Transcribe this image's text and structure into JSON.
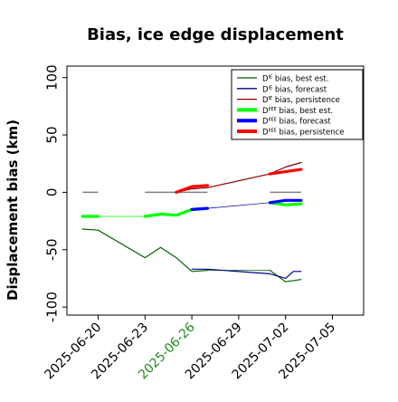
{
  "chart_data": {
    "type": "line",
    "title": "Bias, ice edge displacement",
    "xlabel": "",
    "ylabel": "Displacement bias (km)",
    "ylim": [
      -107,
      110
    ],
    "yticks": [
      100,
      50,
      0,
      -50,
      -100
    ],
    "xlim": [
      "2025-06-18",
      "2025-07-07"
    ],
    "xticks": [
      {
        "date": "2025-06-20",
        "label": "2025-06-20",
        "color": "#000000"
      },
      {
        "date": "2025-06-23",
        "label": "2025-06-23",
        "color": "#000000"
      },
      {
        "date": "2025-06-26",
        "label": "2025-06-26",
        "color": "#228b22"
      },
      {
        "date": "2025-06-29",
        "label": "2025-06-29",
        "color": "#000000"
      },
      {
        "date": "2025-07-02",
        "label": "2025-07-02",
        "color": "#000000"
      },
      {
        "date": "2025-07-05",
        "label": "2025-07-05",
        "color": "#000000"
      }
    ],
    "grid": false,
    "legend_position": "top-right",
    "zero_reference_segments": [
      {
        "x": [
          "2025-06-19",
          "2025-06-20"
        ],
        "y": 0
      },
      {
        "x": [
          "2025-06-23",
          "2025-06-27"
        ],
        "y": 0
      },
      {
        "x": [
          "2025-07-01",
          "2025-07-03"
        ],
        "y": 0
      }
    ],
    "series": [
      {
        "name": "Dᴵᴱ bias, best est.",
        "legend_sup": "IE",
        "legend_rest": " bias, best est.",
        "color": "#006400",
        "width": 1.2,
        "thin": true,
        "segments": [
          [
            [
              "2025-06-19",
              -32
            ],
            [
              "2025-06-20",
              -33
            ],
            [
              "2025-06-23",
              -57
            ],
            [
              "2025-06-24",
              -48
            ],
            [
              "2025-06-25",
              -57
            ],
            [
              "2025-06-26",
              -69
            ],
            [
              "2025-06-27",
              -68
            ]
          ],
          [
            [
              "2025-07-01",
              -68
            ],
            [
              "2025-07-02",
              -78
            ],
            [
              "2025-07-03",
              -76
            ]
          ]
        ]
      },
      {
        "name": "Dᴵᴱ bias, forecast",
        "legend_sup": "IE",
        "legend_rest": " bias, forecast",
        "color": "#00008b",
        "width": 1.2,
        "thin": true,
        "segments": [
          [
            [
              "2025-06-26",
              -67
            ],
            [
              "2025-06-27",
              -67
            ],
            [
              "2025-07-01",
              -71
            ],
            [
              "2025-07-02",
              -75
            ],
            [
              "2025-07-02.5",
              -69
            ],
            [
              "2025-07-03",
              -69
            ]
          ]
        ]
      },
      {
        "name": "Dᴵᴱ bias, persistence",
        "legend_sup": "IE",
        "legend_rest": " bias, persistence",
        "color": "#8b0000",
        "width": 1.2,
        "thin": true,
        "segments": [
          [
            [
              "2025-06-25",
              0
            ],
            [
              "2025-06-26",
              3
            ],
            [
              "2025-06-27",
              4
            ],
            [
              "2025-07-01",
              16
            ],
            [
              "2025-07-02",
              22
            ],
            [
              "2025-07-03",
              26
            ]
          ]
        ]
      },
      {
        "name": "Dᴵᴱᴱ bias, best est.",
        "legend_sup": "IIEE",
        "legend_rest": " bias, best est.",
        "color": "#00ff00",
        "width": 3.2,
        "thin": false,
        "segments": [
          [
            [
              "2025-06-19",
              -21
            ],
            [
              "2025-06-20",
              -21
            ]
          ],
          [
            [
              "2025-06-23",
              -21
            ],
            [
              "2025-06-24",
              -19
            ],
            [
              "2025-06-25",
              -20
            ],
            [
              "2025-06-26",
              -15
            ],
            [
              "2025-06-27",
              -14
            ]
          ],
          [
            [
              "2025-07-01",
              -9
            ],
            [
              "2025-07-02",
              -11
            ],
            [
              "2025-07-03",
              -10
            ]
          ]
        ]
      },
      {
        "name": "Dᴵᴱᴱ bias, forecast",
        "legend_sup": "IIEE",
        "legend_rest": " bias, forecast",
        "color": "#0000ff",
        "width": 3.2,
        "thin": false,
        "segments": [
          [
            [
              "2025-06-26",
              -15
            ],
            [
              "2025-06-27",
              -14
            ]
          ],
          [
            [
              "2025-07-01",
              -9
            ],
            [
              "2025-07-02",
              -7
            ],
            [
              "2025-07-03",
              -7
            ]
          ]
        ]
      },
      {
        "name": "Dᴵᴱᴱ bias, persistence",
        "legend_sup": "IIEE",
        "legend_rest": " bias, persistence",
        "color": "#ff0000",
        "width": 3.2,
        "thin": false,
        "segments": [
          [
            [
              "2025-06-25",
              0
            ],
            [
              "2025-06-26",
              5
            ],
            [
              "2025-06-27",
              6
            ]
          ],
          [
            [
              "2025-07-01",
              16
            ],
            [
              "2025-07-02",
              18
            ],
            [
              "2025-07-03",
              20
            ]
          ]
        ]
      }
    ],
    "thin_connectors": [
      {
        "color": "#006400",
        "points": [
          [
            "2025-06-20",
            -33
          ],
          [
            "2025-06-23",
            -57
          ]
        ]
      },
      {
        "color": "#00ff00",
        "points": [
          [
            "2025-06-20",
            -21
          ],
          [
            "2025-06-23",
            -21
          ]
        ]
      },
      {
        "color": "#00008b",
        "points": [
          [
            "2025-06-27",
            -14
          ],
          [
            "2025-07-01",
            -9
          ]
        ]
      },
      {
        "color": "#006400",
        "points": [
          [
            "2025-06-27",
            -68
          ],
          [
            "2025-07-01",
            -68
          ]
        ]
      }
    ]
  }
}
